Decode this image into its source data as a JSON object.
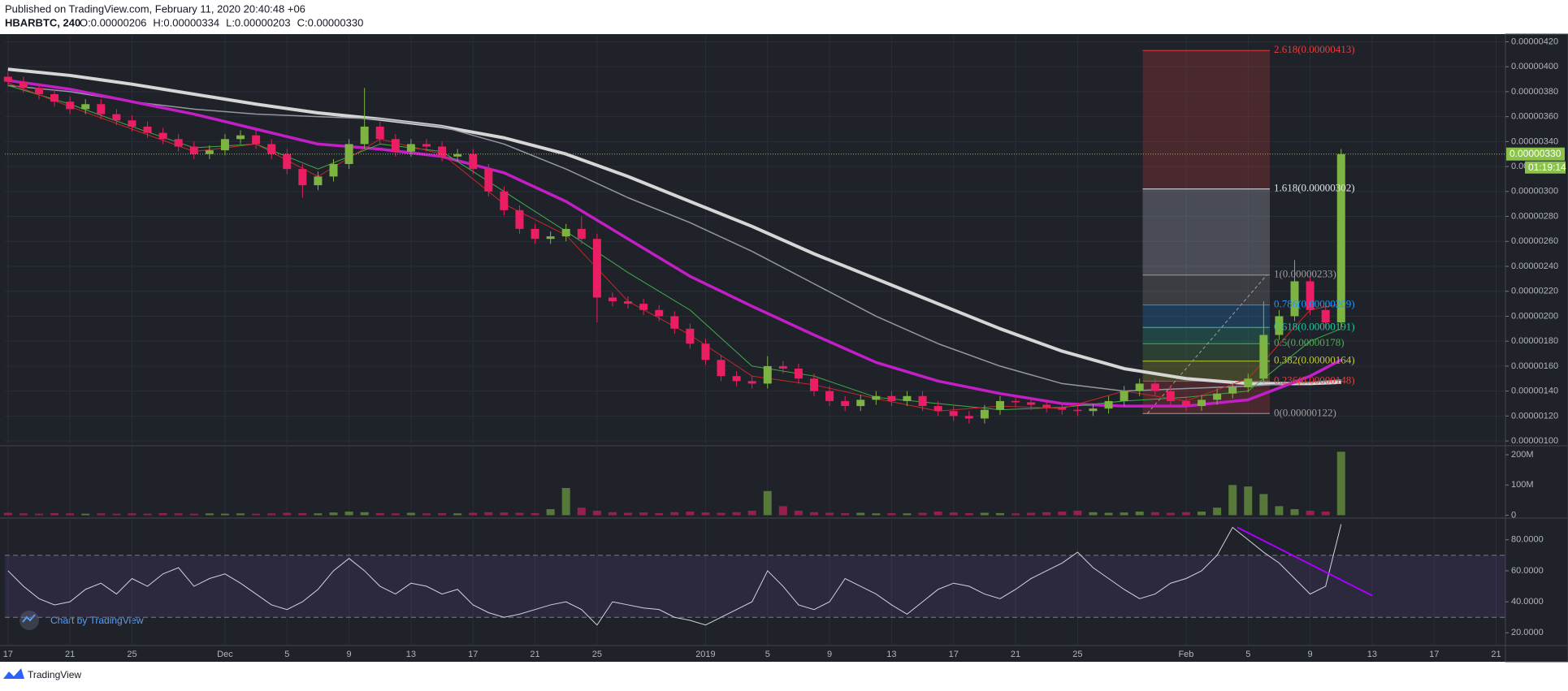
{
  "header": {
    "published": "Published on TradingView.com, February 11, 2020 20:40:48 +06",
    "symbol": "HBARBTC, 240",
    "ohlc": [
      "O:0.00000206",
      "H:0.00000334",
      "L:0.00000203",
      "C:0.00000330"
    ]
  },
  "watermark": "Chart by TradingView",
  "footer": "TradingView",
  "chart_data": {
    "type": "candlestick",
    "up_color": "#7cb342",
    "down_color": "#e91e63",
    "grid": true,
    "x": [
      0,
      1,
      2,
      3,
      4,
      5,
      6,
      7,
      8,
      9,
      10,
      11,
      12,
      13,
      14,
      15,
      16,
      17,
      18,
      19,
      20,
      21,
      22,
      23,
      24,
      25,
      26,
      27,
      28,
      29,
      30,
      31,
      32,
      33,
      34,
      35,
      36,
      37,
      38,
      39,
      40,
      41,
      42,
      43,
      44,
      45,
      46,
      47,
      48,
      49,
      50,
      51,
      52,
      53,
      54,
      55,
      56,
      57,
      58,
      59,
      60,
      61,
      62,
      63,
      64,
      65,
      66,
      67,
      68,
      69,
      70,
      71,
      72,
      73,
      74,
      75,
      76,
      77,
      78,
      79,
      80,
      81,
      82,
      83,
      84,
      85,
      86
    ],
    "open": [
      3.92e-06,
      3.88e-06,
      3.83e-06,
      3.78e-06,
      3.72e-06,
      3.66e-06,
      3.7e-06,
      3.62e-06,
      3.57e-06,
      3.52e-06,
      3.47e-06,
      3.42e-06,
      3.36e-06,
      3.3e-06,
      3.33e-06,
      3.42e-06,
      3.45e-06,
      3.38e-06,
      3.3e-06,
      3.18e-06,
      3.05e-06,
      3.12e-06,
      3.22e-06,
      3.38e-06,
      3.52e-06,
      3.42e-06,
      3.32e-06,
      3.38e-06,
      3.36e-06,
      3.28e-06,
      3.3e-06,
      3.18e-06,
      3e-06,
      2.85e-06,
      2.7e-06,
      2.62e-06,
      2.64e-06,
      2.7e-06,
      2.62e-06,
      2.15e-06,
      2.12e-06,
      2.1e-06,
      2.05e-06,
      2e-06,
      1.9e-06,
      1.78e-06,
      1.65e-06,
      1.52e-06,
      1.48e-06,
      1.46e-06,
      1.6e-06,
      1.58e-06,
      1.5e-06,
      1.4e-06,
      1.32e-06,
      1.28e-06,
      1.33e-06,
      1.36e-06,
      1.32e-06,
      1.36e-06,
      1.28e-06,
      1.24e-06,
      1.2e-06,
      1.18e-06,
      1.25e-06,
      1.32e-06,
      1.31e-06,
      1.29e-06,
      1.27e-06,
      1.25e-06,
      1.24e-06,
      1.26e-06,
      1.32e-06,
      1.4e-06,
      1.46e-06,
      1.4e-06,
      1.32e-06,
      1.28e-06,
      1.33e-06,
      1.38e-06,
      1.43e-06,
      1.5e-06,
      1.85e-06,
      2e-06,
      2.28e-06,
      2.05e-06,
      1.95e-06
    ],
    "high": [
      3.96e-06,
      3.92e-06,
      3.87e-06,
      3.82e-06,
      3.76e-06,
      3.74e-06,
      3.74e-06,
      3.66e-06,
      3.61e-06,
      3.56e-06,
      3.51e-06,
      3.46e-06,
      3.4e-06,
      3.37e-06,
      3.46e-06,
      3.49e-06,
      3.49e-06,
      3.42e-06,
      3.34e-06,
      3.22e-06,
      3.16e-06,
      3.26e-06,
      3.42e-06,
      3.83e-06,
      3.56e-06,
      3.46e-06,
      3.42e-06,
      3.42e-06,
      3.4e-06,
      3.34e-06,
      3.34e-06,
      3.22e-06,
      3.04e-06,
      2.89e-06,
      2.74e-06,
      2.68e-06,
      2.74e-06,
      2.8e-06,
      2.66e-06,
      2.19e-06,
      2.16e-06,
      2.14e-06,
      2.09e-06,
      2.04e-06,
      1.94e-06,
      1.82e-06,
      1.69e-06,
      1.56e-06,
      1.52e-06,
      1.68e-06,
      1.64e-06,
      1.62e-06,
      1.54e-06,
      1.44e-06,
      1.36e-06,
      1.37e-06,
      1.4e-06,
      1.4e-06,
      1.4e-06,
      1.4e-06,
      1.32e-06,
      1.28e-06,
      1.24e-06,
      1.29e-06,
      1.36e-06,
      1.36e-06,
      1.35e-06,
      1.33e-06,
      1.31e-06,
      1.29e-06,
      1.3e-06,
      1.36e-06,
      1.44e-06,
      1.5e-06,
      1.5e-06,
      1.44e-06,
      1.36e-06,
      1.37e-06,
      1.42e-06,
      1.47e-06,
      1.54e-06,
      2.12e-06,
      2.05e-06,
      2.45e-06,
      2.32e-06,
      2.09e-06,
      3.34e-06
    ],
    "low": [
      3.84e-06,
      3.79e-06,
      3.74e-06,
      3.68e-06,
      3.62e-06,
      3.62e-06,
      3.58e-06,
      3.53e-06,
      3.48e-06,
      3.43e-06,
      3.38e-06,
      3.32e-06,
      3.26e-06,
      3.26e-06,
      3.29e-06,
      3.38e-06,
      3.34e-06,
      3.26e-06,
      3.14e-06,
      2.95e-06,
      3.01e-06,
      3.08e-06,
      3.18e-06,
      3.34e-06,
      3.38e-06,
      3.28e-06,
      3.28e-06,
      3.32e-06,
      3.24e-06,
      3.24e-06,
      3.14e-06,
      2.96e-06,
      2.81e-06,
      2.66e-06,
      2.58e-06,
      2.58e-06,
      2.6e-06,
      2.58e-06,
      1.95e-06,
      2.08e-06,
      2.06e-06,
      2.01e-06,
      1.96e-06,
      1.86e-06,
      1.74e-06,
      1.61e-06,
      1.48e-06,
      1.44e-06,
      1.42e-06,
      1.42e-06,
      1.54e-06,
      1.46e-06,
      1.36e-06,
      1.28e-06,
      1.24e-06,
      1.24e-06,
      1.29e-06,
      1.28e-06,
      1.28e-06,
      1.24e-06,
      1.2e-06,
      1.16e-06,
      1.14e-06,
      1.14e-06,
      1.21e-06,
      1.27e-06,
      1.25e-06,
      1.23e-06,
      1.21e-06,
      1.2e-06,
      1.2e-06,
      1.22e-06,
      1.28e-06,
      1.36e-06,
      1.36e-06,
      1.28e-06,
      1.24e-06,
      1.24e-06,
      1.29e-06,
      1.34e-06,
      1.39e-06,
      1.46e-06,
      1.81e-06,
      1.96e-06,
      2.01e-06,
      1.91e-06,
      1.9e-06
    ],
    "close": [
      3.88e-06,
      3.83e-06,
      3.78e-06,
      3.72e-06,
      3.66e-06,
      3.7e-06,
      3.62e-06,
      3.57e-06,
      3.52e-06,
      3.47e-06,
      3.42e-06,
      3.36e-06,
      3.3e-06,
      3.33e-06,
      3.42e-06,
      3.45e-06,
      3.38e-06,
      3.3e-06,
      3.18e-06,
      3.05e-06,
      3.12e-06,
      3.22e-06,
      3.38e-06,
      3.52e-06,
      3.42e-06,
      3.32e-06,
      3.38e-06,
      3.36e-06,
      3.28e-06,
      3.3e-06,
      3.18e-06,
      3e-06,
      2.85e-06,
      2.7e-06,
      2.62e-06,
      2.64e-06,
      2.7e-06,
      2.62e-06,
      2.15e-06,
      2.12e-06,
      2.1e-06,
      2.05e-06,
      2e-06,
      1.9e-06,
      1.78e-06,
      1.65e-06,
      1.52e-06,
      1.48e-06,
      1.46e-06,
      1.6e-06,
      1.58e-06,
      1.5e-06,
      1.4e-06,
      1.32e-06,
      1.28e-06,
      1.33e-06,
      1.36e-06,
      1.32e-06,
      1.36e-06,
      1.28e-06,
      1.24e-06,
      1.2e-06,
      1.18e-06,
      1.25e-06,
      1.32e-06,
      1.31e-06,
      1.29e-06,
      1.27e-06,
      1.25e-06,
      1.24e-06,
      1.26e-06,
      1.32e-06,
      1.4e-06,
      1.46e-06,
      1.4e-06,
      1.32e-06,
      1.28e-06,
      1.33e-06,
      1.38e-06,
      1.43e-06,
      1.5e-06,
      1.85e-06,
      2e-06,
      2.28e-06,
      2.05e-06,
      1.95e-06,
      3.3e-06
    ],
    "xlim": [
      -0.2,
      96.6
    ],
    "xticks": [
      {
        "value": 0,
        "label": "17"
      },
      {
        "value": 4,
        "label": "21"
      },
      {
        "value": 8,
        "label": "25"
      },
      {
        "value": 14,
        "label": "Dec"
      },
      {
        "value": 18,
        "label": "5"
      },
      {
        "value": 22,
        "label": "9"
      },
      {
        "value": 26,
        "label": "13"
      },
      {
        "value": 30,
        "label": "17"
      },
      {
        "value": 34,
        "label": "21"
      },
      {
        "value": 38,
        "label": "25"
      },
      {
        "value": 45,
        "label": "2019"
      },
      {
        "value": 49,
        "label": "5"
      },
      {
        "value": 53,
        "label": "9"
      },
      {
        "value": 57,
        "label": "13"
      },
      {
        "value": 61,
        "label": "17"
      },
      {
        "value": 65,
        "label": "21"
      },
      {
        "value": 69,
        "label": "25"
      },
      {
        "value": 76,
        "label": "Feb"
      },
      {
        "value": 80,
        "label": "5"
      },
      {
        "value": 84,
        "label": "9"
      },
      {
        "value": 88,
        "label": "13"
      },
      {
        "value": 92,
        "label": "17"
      },
      {
        "value": 96,
        "label": "21"
      }
    ],
    "ylim": [
      9.68e-07,
      4.255e-06
    ],
    "yticks": [
      {
        "value": 1e-06,
        "label": "0.00000100"
      },
      {
        "value": 1.2e-06,
        "label": "0.00000120"
      },
      {
        "value": 1.4e-06,
        "label": "0.00000140"
      },
      {
        "value": 1.6e-06,
        "label": "0.00000160"
      },
      {
        "value": 1.8e-06,
        "label": "0.00000180"
      },
      {
        "value": 2e-06,
        "label": "0.00000200"
      },
      {
        "value": 2.2e-06,
        "label": "0.00000220"
      },
      {
        "value": 2.4e-06,
        "label": "0.00000240"
      },
      {
        "value": 2.6e-06,
        "label": "0.00000260"
      },
      {
        "value": 2.8e-06,
        "label": "0.00000280"
      },
      {
        "value": 3e-06,
        "label": "0.00000300"
      },
      {
        "value": 3.2e-06,
        "label": "0.00000320"
      },
      {
        "value": 3.4e-06,
        "label": "0.00000340"
      },
      {
        "value": 3.6e-06,
        "label": "0.00000360"
      },
      {
        "value": 3.8e-06,
        "label": "0.00000380"
      },
      {
        "value": 4e-06,
        "label": "0.00000400"
      },
      {
        "value": 4.2e-06,
        "label": "0.00000420"
      }
    ],
    "moving_averages": {
      "x": [
        0,
        4,
        8,
        12,
        16,
        20,
        24,
        28,
        32,
        36,
        40,
        44,
        48,
        52,
        56,
        60,
        64,
        68,
        72,
        76,
        80,
        84,
        86
      ],
      "series": [
        {
          "color": "#d6d6d6",
          "width": 4,
          "values": [
            3.98e-06,
            3.93e-06,
            3.86e-06,
            3.78e-06,
            3.7e-06,
            3.63e-06,
            3.58e-06,
            3.52e-06,
            3.43e-06,
            3.3e-06,
            3.12e-06,
            2.92e-06,
            2.72e-06,
            2.5e-06,
            2.3e-06,
            2.1e-06,
            1.9e-06,
            1.72e-06,
            1.58e-06,
            1.5e-06,
            1.46e-06,
            1.46e-06,
            1.47e-06
          ]
        },
        {
          "color": "#9598a1",
          "width": 1.5,
          "values": [
            3.85e-06,
            3.8e-06,
            3.72e-06,
            3.66e-06,
            3.62e-06,
            3.6e-06,
            3.58e-06,
            3.52e-06,
            3.38e-06,
            3.18e-06,
            2.95e-06,
            2.75e-06,
            2.52e-06,
            2.26e-06,
            2e-06,
            1.78e-06,
            1.6e-06,
            1.46e-06,
            1.4e-06,
            1.42e-06,
            1.44e-06,
            1.47e-06,
            1.49e-06
          ]
        },
        {
          "color": "#c21fc6",
          "width": 3.5,
          "values": [
            3.89e-06,
            3.82e-06,
            3.72e-06,
            3.62e-06,
            3.5e-06,
            3.38e-06,
            3.34e-06,
            3.28e-06,
            3.15e-06,
            2.92e-06,
            2.62e-06,
            2.32e-06,
            2.08e-06,
            1.85e-06,
            1.63e-06,
            1.48e-06,
            1.38e-06,
            1.3e-06,
            1.28e-06,
            1.28e-06,
            1.33e-06,
            1.52e-06,
            1.65e-06
          ]
        },
        {
          "color": "#3fae49",
          "width": 1,
          "values": [
            3.85e-06,
            3.7e-06,
            3.52e-06,
            3.35e-06,
            3.38e-06,
            3.18e-06,
            3.38e-06,
            3.32e-06,
            3e-06,
            2.68e-06,
            2.35e-06,
            2.05e-06,
            1.6e-06,
            1.52e-06,
            1.35e-06,
            1.3e-06,
            1.25e-06,
            1.27e-06,
            1.32e-06,
            1.35e-06,
            1.4e-06,
            1.8e-06,
            1.9e-06
          ]
        },
        {
          "color": "#c62828",
          "width": 1,
          "values": [
            3.87e-06,
            3.68e-06,
            3.5e-06,
            3.32e-06,
            3.38e-06,
            3.12e-06,
            3.42e-06,
            3.3e-06,
            2.9e-06,
            2.65e-06,
            2.12e-06,
            1.85e-06,
            1.52e-06,
            1.45e-06,
            1.34e-06,
            1.24e-06,
            1.28e-06,
            1.26e-06,
            1.4e-06,
            1.32e-06,
            1.5e-06,
            2.05e-06,
            2.1e-06
          ]
        }
      ]
    },
    "fib": {
      "x": [
        73.2,
        81.4
      ],
      "levels": [
        {
          "value": 4.13e-06,
          "label": "2.618(0.00000413)",
          "color": "#e04040"
        },
        {
          "value": 3.02e-06,
          "label": "1.618(0.00000302)",
          "color": "#e0e3eb"
        },
        {
          "value": 2.33e-06,
          "label": "1(0.00000233)",
          "color": "#9e9e9e"
        },
        {
          "value": 2.09e-06,
          "label": "0.786(0.00000209)",
          "color": "#2196f3"
        },
        {
          "value": 1.91e-06,
          "label": "0.618(0.00000191)",
          "color": "#26c6a0"
        },
        {
          "value": 1.78e-06,
          "label": "0.5(0.00000178)",
          "color": "#4caf50"
        },
        {
          "value": 1.64e-06,
          "label": "0.382(0.00000164)",
          "color": "#c0ca33"
        },
        {
          "value": 1.48e-06,
          "label": "0.236(0.00000148)",
          "color": "#e04040"
        },
        {
          "value": 1.22e-06,
          "label": "0(0.00000122)",
          "color": "#9e9e9e"
        }
      ],
      "trend": {
        "x": [
          73.5,
          81.2
        ],
        "values": [
          1.22e-06,
          2.33e-06
        ]
      }
    },
    "last_price": {
      "value": 3.3e-06,
      "label": "0.00000330",
      "color": "#8bc34a"
    },
    "countdown": "01:19:14",
    "volume": {
      "values": [
        8000000,
        6000000,
        5000000,
        7000000,
        6000000,
        5000000,
        6000000,
        5000000,
        6000000,
        5000000,
        7000000,
        6000000,
        5000000,
        6000000,
        5000000,
        6000000,
        5000000,
        6000000,
        8000000,
        7000000,
        6000000,
        9000000,
        12000000,
        10000000,
        7000000,
        6000000,
        8000000,
        6000000,
        7000000,
        6000000,
        8000000,
        10000000,
        9000000,
        8000000,
        7000000,
        20000000,
        90000000,
        25000000,
        15000000,
        10000000,
        8000000,
        9000000,
        7000000,
        10000000,
        12000000,
        9000000,
        8000000,
        10000000,
        15000000,
        80000000,
        30000000,
        15000000,
        10000000,
        8000000,
        7000000,
        8000000,
        6000000,
        7000000,
        6000000,
        8000000,
        12000000,
        9000000,
        7000000,
        8000000,
        7000000,
        6000000,
        8000000,
        10000000,
        12000000,
        15000000,
        10000000,
        8000000,
        9000000,
        12000000,
        10000000,
        8000000,
        10000000,
        12000000,
        25000000,
        100000000,
        95000000,
        70000000,
        30000000,
        20000000,
        15000000,
        12000000,
        210000000
      ],
      "ylim": [
        -6700000,
        227000000
      ],
      "yticks": [
        0,
        {
          "value": 100000000,
          "label": "100M"
        },
        {
          "value": 200000000,
          "label": "200M"
        }
      ]
    },
    "rsi": {
      "values": [
        60,
        50,
        42,
        38,
        40,
        48,
        52,
        45,
        55,
        50,
        58,
        62,
        50,
        55,
        58,
        52,
        45,
        38,
        35,
        40,
        48,
        60,
        68,
        60,
        50,
        45,
        52,
        50,
        45,
        48,
        38,
        33,
        30,
        32,
        35,
        38,
        40,
        35,
        25,
        40,
        38,
        36,
        35,
        30,
        28,
        25,
        30,
        35,
        40,
        60,
        50,
        38,
        35,
        40,
        55,
        50,
        45,
        38,
        32,
        40,
        48,
        52,
        50,
        45,
        42,
        48,
        55,
        60,
        65,
        72,
        62,
        55,
        48,
        42,
        45,
        52,
        55,
        60,
        70,
        88,
        80,
        72,
        65,
        55,
        45,
        50,
        90
      ],
      "color": "#d1d4dc",
      "ylim": [
        12.3,
        93.5
      ],
      "yticks": [
        {
          "value": 20,
          "label": "20.0000"
        },
        {
          "value": 40,
          "label": "40.0000"
        },
        {
          "value": 60,
          "label": "60.0000"
        },
        {
          "value": 80,
          "label": "80.0000"
        }
      ],
      "bands": [
        30,
        70
      ],
      "trendline": {
        "x": [
          79.3,
          88
        ],
        "values": [
          88,
          44
        ],
        "color": "#aa00ff"
      }
    }
  }
}
